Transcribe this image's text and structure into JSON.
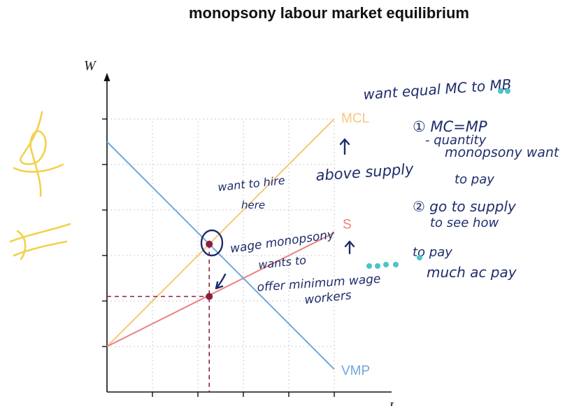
{
  "title": "monopsony labour market equilibrium",
  "chart_data": {
    "type": "line",
    "title": "monopsony labour market equilibrium",
    "xlabel": "L",
    "ylabel": "W",
    "xlim": [
      0,
      10
    ],
    "ylim": [
      0,
      10
    ],
    "ticks_x": 5,
    "ticks_y": 6,
    "grid": true,
    "series": [
      {
        "name": "MCL",
        "color": "#f5c77e",
        "x": [
          0,
          5
        ],
        "y": [
          1,
          6
        ]
      },
      {
        "name": "S",
        "color": "#e8827f",
        "x": [
          0,
          5
        ],
        "y": [
          1,
          3.5
        ]
      },
      {
        "name": "VMP",
        "color": "#6fa8dc",
        "x": [
          0,
          5
        ],
        "y": [
          5.5,
          0.5
        ]
      }
    ],
    "points": [
      {
        "label": "MCL=VMP",
        "x": 2.25,
        "y": 3.25,
        "color": "#8b1e3f"
      },
      {
        "label": "wage",
        "x": 2.25,
        "y": 2.1,
        "color": "#8b1e3f"
      }
    ],
    "annotations": [
      "want equal MC to MB",
      "① MC=MP",
      "- quantity",
      "monopsony want",
      "to pay",
      "② go to supply",
      "to see how",
      "much ac pay",
      "want to hire",
      "here",
      "above supply",
      "wage monopsony",
      "wants to",
      "offer minimum wage",
      "to pay",
      "workers"
    ]
  }
}
